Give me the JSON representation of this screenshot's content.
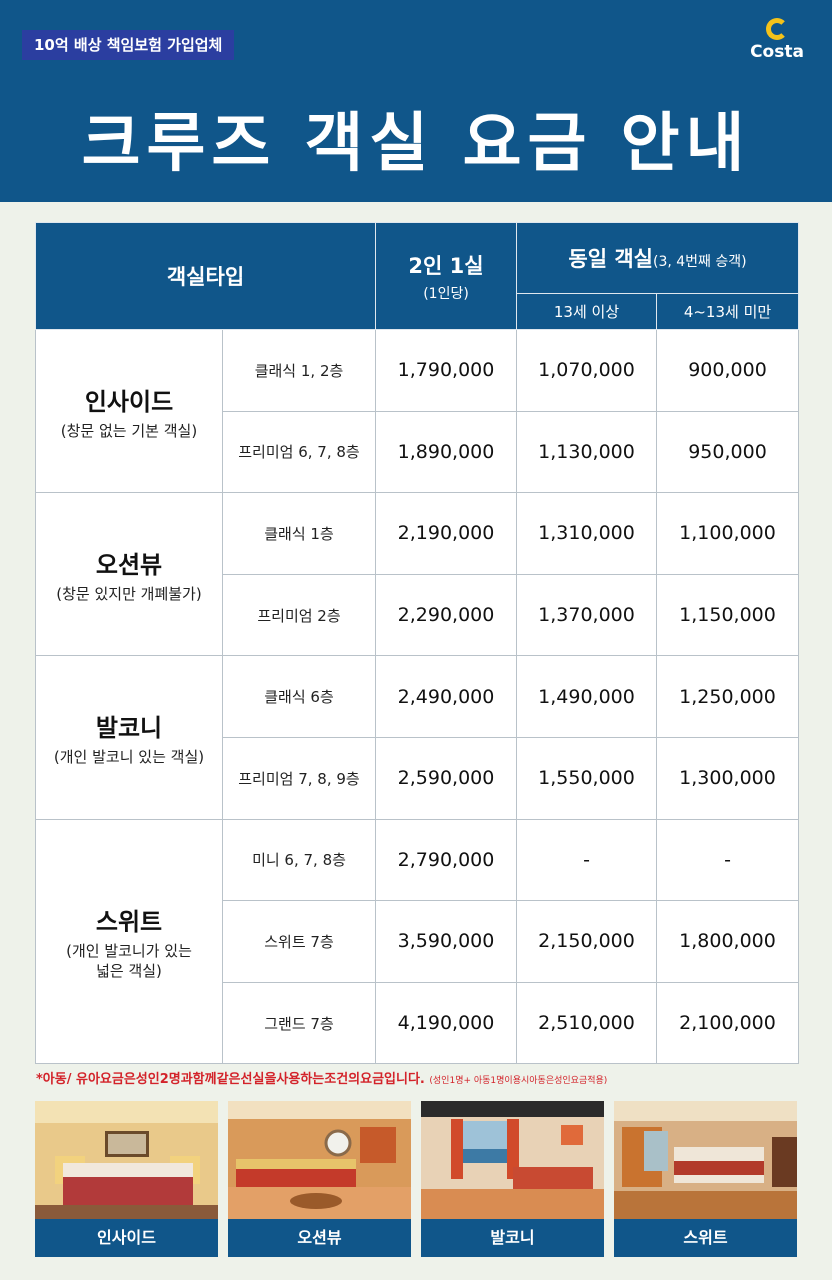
{
  "header": {
    "insurance_badge": "10억 배상 책임보험 가입업체",
    "logo_text": "Costa",
    "title": "크루즈 객실 요금 안내"
  },
  "table": {
    "headers": {
      "room_type": "객실타입",
      "two_per_room": "2인 1실",
      "two_per_room_sub": "(1인당)",
      "same_room": "동일 객실",
      "same_room_sub": "(3, 4번째 승객)",
      "age_13_plus": "13세 이상",
      "age_4_to_13": "4~13세 미만"
    },
    "groups": [
      {
        "name": "인사이드",
        "desc": "(창문 없는 기본 객실)",
        "rows": [
          {
            "sub": "클래식 1, 2층",
            "price": "1,790,000",
            "p13": "1,070,000",
            "p4": "900,000"
          },
          {
            "sub": "프리미엄 6, 7, 8층",
            "price": "1,890,000",
            "p13": "1,130,000",
            "p4": "950,000"
          }
        ]
      },
      {
        "name": "오션뷰",
        "desc": "(창문 있지만 개폐불가)",
        "rows": [
          {
            "sub": "클래식 1층",
            "price": "2,190,000",
            "p13": "1,310,000",
            "p4": "1,100,000"
          },
          {
            "sub": "프리미엄 2층",
            "price": "2,290,000",
            "p13": "1,370,000",
            "p4": "1,150,000"
          }
        ]
      },
      {
        "name": "발코니",
        "desc": "(개인 발코니 있는 객실)",
        "rows": [
          {
            "sub": "클래식 6층",
            "price": "2,490,000",
            "p13": "1,490,000",
            "p4": "1,250,000"
          },
          {
            "sub": "프리미엄 7, 8, 9층",
            "price": "2,590,000",
            "p13": "1,550,000",
            "p4": "1,300,000"
          }
        ]
      },
      {
        "name": "스위트",
        "desc": "(개인 발코니가 있는 넓은 객실)",
        "rows": [
          {
            "sub": "미니 6, 7, 8층",
            "price": "2,790,000",
            "p13": "-",
            "p4": "-"
          },
          {
            "sub": "스위트 7층",
            "price": "3,590,000",
            "p13": "2,150,000",
            "p4": "1,800,000"
          },
          {
            "sub": "그랜드 7층",
            "price": "4,190,000",
            "p13": "2,510,000",
            "p4": "2,100,000"
          }
        ]
      }
    ]
  },
  "note": {
    "main": "*아동/ 유아요금은성인2명과함께같은선실을사용하는조건의요금입니다.",
    "small": "(성인1명+ 아동1명이용시아동은성인요금적용)"
  },
  "gallery": [
    {
      "label": "인사이드"
    },
    {
      "label": "오션뷰"
    },
    {
      "label": "발코니"
    },
    {
      "label": "스위트"
    }
  ],
  "colors": {
    "header_bg": "#10568a",
    "badge_bg": "#2b3ea0",
    "logo_accent": "#f4c21a",
    "note_red": "#d3232a",
    "page_bg": "#eef2ea"
  }
}
